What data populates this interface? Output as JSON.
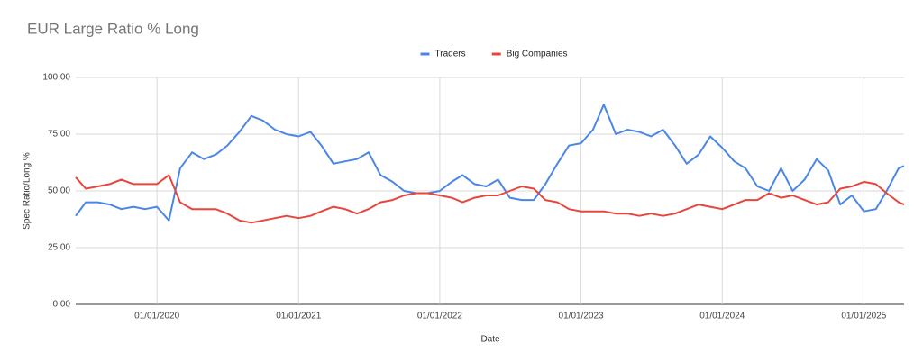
{
  "chart_data": {
    "type": "line",
    "title": "EUR Large Ratio % Long",
    "x_label": "Date",
    "y_label": "Spec Ratio/Long %",
    "x": [
      "2019-06-05",
      "2019-07-01",
      "2019-08-01",
      "2019-09-01",
      "2019-10-01",
      "2019-11-01",
      "2019-12-01",
      "2020-01-01",
      "2020-02-01",
      "2020-03-01",
      "2020-04-01",
      "2020-05-01",
      "2020-06-01",
      "2020-07-01",
      "2020-08-01",
      "2020-09-01",
      "2020-10-01",
      "2020-11-01",
      "2020-12-01",
      "2021-01-01",
      "2021-02-01",
      "2021-03-01",
      "2021-04-01",
      "2021-05-01",
      "2021-06-01",
      "2021-07-01",
      "2021-08-01",
      "2021-09-01",
      "2021-10-01",
      "2021-11-01",
      "2021-12-01",
      "2022-01-01",
      "2022-02-01",
      "2022-03-01",
      "2022-04-01",
      "2022-05-01",
      "2022-06-01",
      "2022-07-01",
      "2022-08-01",
      "2022-09-01",
      "2022-10-01",
      "2022-11-01",
      "2022-12-01",
      "2023-01-01",
      "2023-02-01",
      "2023-03-01",
      "2023-04-01",
      "2023-05-01",
      "2023-06-01",
      "2023-07-01",
      "2023-08-01",
      "2023-09-01",
      "2023-10-01",
      "2023-11-01",
      "2023-12-01",
      "2024-01-01",
      "2024-02-01",
      "2024-03-01",
      "2024-04-01",
      "2024-05-01",
      "2024-06-01",
      "2024-07-01",
      "2024-08-01",
      "2024-09-01",
      "2024-10-01",
      "2024-11-01",
      "2024-12-01",
      "2025-01-01",
      "2025-02-01",
      "2025-03-01",
      "2025-04-01",
      "2025-04-15"
    ],
    "series": [
      {
        "name": "Traders",
        "color": "#4a86e8",
        "values": [
          39,
          45,
          45,
          44,
          42,
          43,
          42,
          43,
          37,
          60,
          67,
          64,
          66,
          70,
          76,
          83,
          81,
          77,
          75,
          74,
          76,
          70,
          62,
          63,
          64,
          67,
          57,
          54,
          50,
          49,
          49,
          50,
          54,
          57,
          53,
          52,
          55,
          47,
          46,
          46,
          53,
          62,
          70,
          71,
          77,
          88,
          75,
          77,
          76,
          74,
          77,
          70,
          62,
          66,
          74,
          69,
          63,
          60,
          52,
          50,
          60,
          50,
          55,
          64,
          59,
          44,
          48,
          41,
          42,
          50,
          60,
          61
        ]
      },
      {
        "name": "Big Companies",
        "color": "#e8453c",
        "values": [
          56,
          51,
          52,
          53,
          55,
          53,
          53,
          53,
          57,
          45,
          42,
          42,
          42,
          40,
          37,
          36,
          37,
          38,
          39,
          38,
          39,
          41,
          43,
          42,
          40,
          42,
          45,
          46,
          48,
          49,
          49,
          48,
          47,
          45,
          47,
          48,
          48,
          50,
          52,
          51,
          46,
          45,
          42,
          41,
          41,
          41,
          40,
          40,
          39,
          40,
          39,
          40,
          42,
          44,
          43,
          42,
          44,
          46,
          46,
          49,
          47,
          48,
          46,
          44,
          45,
          51,
          52,
          54,
          53,
          49,
          45,
          44
        ]
      }
    ],
    "xlim": [
      "2019-06-05",
      "2025-04-15"
    ],
    "xticks": [
      {
        "value": "2020-01-01",
        "label": "01/01/2020"
      },
      {
        "value": "2021-01-01",
        "label": "01/01/2021"
      },
      {
        "value": "2022-01-01",
        "label": "01/01/2022"
      },
      {
        "value": "2023-01-01",
        "label": "01/01/2023"
      },
      {
        "value": "2024-01-01",
        "label": "01/01/2024"
      },
      {
        "value": "2025-01-01",
        "label": "01/01/2025"
      }
    ],
    "ylim": [
      0,
      100
    ],
    "yticks": [
      {
        "value": 0,
        "label": "0.00"
      },
      {
        "value": 25,
        "label": "25.00"
      },
      {
        "value": 50,
        "label": "50.00"
      },
      {
        "value": 75,
        "label": "75.00"
      },
      {
        "value": 100,
        "label": "100.00"
      }
    ],
    "grid": true,
    "legend": "top"
  }
}
